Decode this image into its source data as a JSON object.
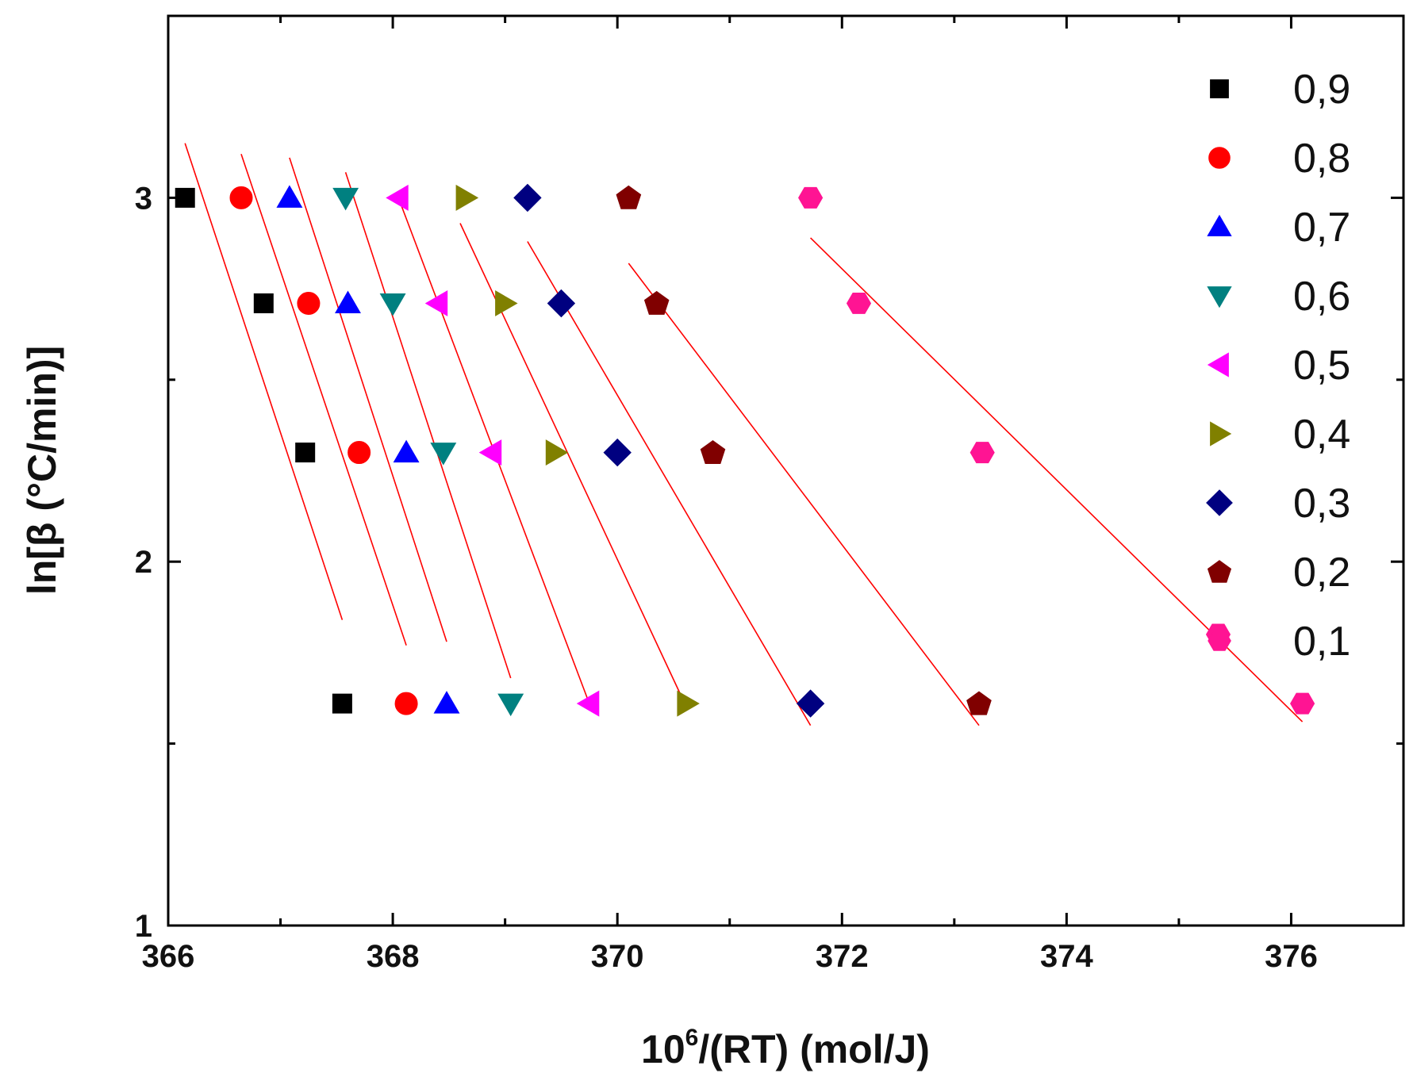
{
  "chart_data": {
    "type": "scatter",
    "title": "",
    "xlabel_base": "10",
    "xlabel_sup": "6",
    "xlabel_rest": "/(RT) (mol/J)",
    "ylabel": "ln[β (°C/min)]",
    "xlim": [
      366,
      377
    ],
    "ylim": [
      1,
      3.5
    ],
    "x_ticks": [
      "366",
      "368",
      "370",
      "372",
      "374",
      "376"
    ],
    "y_ticks": [
      "1",
      "2",
      "3"
    ],
    "legend_position": "top-right",
    "series": [
      {
        "name": "0,9",
        "marker": "square",
        "color": "#000000",
        "points": [
          [
            366.15,
            3.0
          ],
          [
            366.85,
            2.71
          ],
          [
            367.22,
            2.3
          ],
          [
            367.55,
            1.61
          ]
        ],
        "fit": [
          [
            366.15,
            3.15
          ],
          [
            367.55,
            1.84
          ]
        ]
      },
      {
        "name": "0,8",
        "marker": "circle",
        "color": "#ff0000",
        "points": [
          [
            366.65,
            3.0
          ],
          [
            367.25,
            2.71
          ],
          [
            367.7,
            2.3
          ],
          [
            368.12,
            1.61
          ]
        ],
        "fit": [
          [
            366.65,
            3.12
          ],
          [
            368.12,
            1.77
          ]
        ]
      },
      {
        "name": "0,7",
        "marker": "triangle-up",
        "color": "#0000ff",
        "points": [
          [
            367.08,
            3.0
          ],
          [
            367.6,
            2.71
          ],
          [
            368.12,
            2.3
          ],
          [
            368.48,
            1.61
          ]
        ],
        "fit": [
          [
            367.08,
            3.11
          ],
          [
            368.48,
            1.78
          ]
        ]
      },
      {
        "name": "0,6",
        "marker": "triangle-down",
        "color": "#008080",
        "points": [
          [
            367.58,
            3.0
          ],
          [
            368.0,
            2.71
          ],
          [
            368.45,
            2.3
          ],
          [
            369.05,
            1.61
          ]
        ],
        "fit": [
          [
            367.58,
            3.07
          ],
          [
            369.05,
            1.68
          ]
        ]
      },
      {
        "name": "0,5",
        "marker": "triangle-left",
        "color": "#ff00ff",
        "points": [
          [
            368.05,
            3.0
          ],
          [
            368.4,
            2.71
          ],
          [
            368.88,
            2.3
          ],
          [
            369.75,
            1.61
          ]
        ],
        "fit": [
          [
            368.05,
            3.0
          ],
          [
            369.75,
            1.61
          ]
        ]
      },
      {
        "name": "0,4",
        "marker": "triangle-right",
        "color": "#808000",
        "points": [
          [
            368.65,
            3.0
          ],
          [
            369.0,
            2.71
          ],
          [
            369.45,
            2.3
          ],
          [
            370.62,
            1.61
          ]
        ],
        "fit": [
          [
            368.6,
            2.93
          ],
          [
            370.6,
            1.61
          ]
        ]
      },
      {
        "name": "0,3",
        "marker": "diamond",
        "color": "#000080",
        "points": [
          [
            369.2,
            3.0
          ],
          [
            369.5,
            2.71
          ],
          [
            370.0,
            2.3
          ],
          [
            371.72,
            1.61
          ]
        ],
        "fit": [
          [
            369.2,
            2.88
          ],
          [
            371.72,
            1.55
          ]
        ]
      },
      {
        "name": "0,2",
        "marker": "pentagon",
        "color": "#800000",
        "points": [
          [
            370.1,
            3.0
          ],
          [
            370.35,
            2.71
          ],
          [
            370.85,
            2.3
          ],
          [
            373.22,
            1.61
          ]
        ],
        "fit": [
          [
            370.1,
            2.82
          ],
          [
            373.22,
            1.55
          ]
        ]
      },
      {
        "name": "0,1",
        "marker": "hexagon",
        "color": "#ff1493",
        "points": [
          [
            371.72,
            3.0
          ],
          [
            372.15,
            2.71
          ],
          [
            373.25,
            2.3
          ],
          [
            375.35,
            1.8
          ],
          [
            376.1,
            1.61
          ]
        ],
        "fit": [
          [
            371.72,
            2.89
          ],
          [
            376.1,
            1.56
          ]
        ]
      }
    ]
  }
}
